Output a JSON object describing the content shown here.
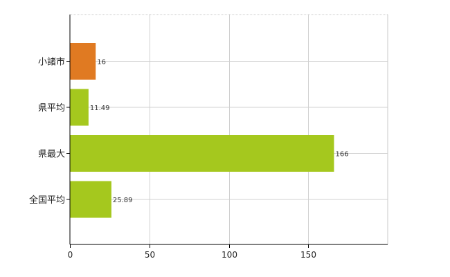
{
  "chart_data": {
    "type": "bar",
    "orientation": "horizontal",
    "categories": [
      "小諸市",
      "県平均",
      "県最大",
      "全国平均"
    ],
    "values": [
      16,
      11.49,
      166,
      25.89
    ],
    "value_labels": [
      "16",
      "11.49",
      "166",
      "25.89"
    ],
    "bar_colors": [
      "#e07a22",
      "#a5c81e",
      "#a5c81e",
      "#a5c81e"
    ],
    "xlim": [
      0,
      200
    ],
    "xticks": [
      0,
      50,
      100,
      150
    ],
    "xtick_labels": [
      "0",
      "50",
      "100",
      "150"
    ],
    "grid": true,
    "title": "",
    "xlabel": "",
    "ylabel": ""
  }
}
